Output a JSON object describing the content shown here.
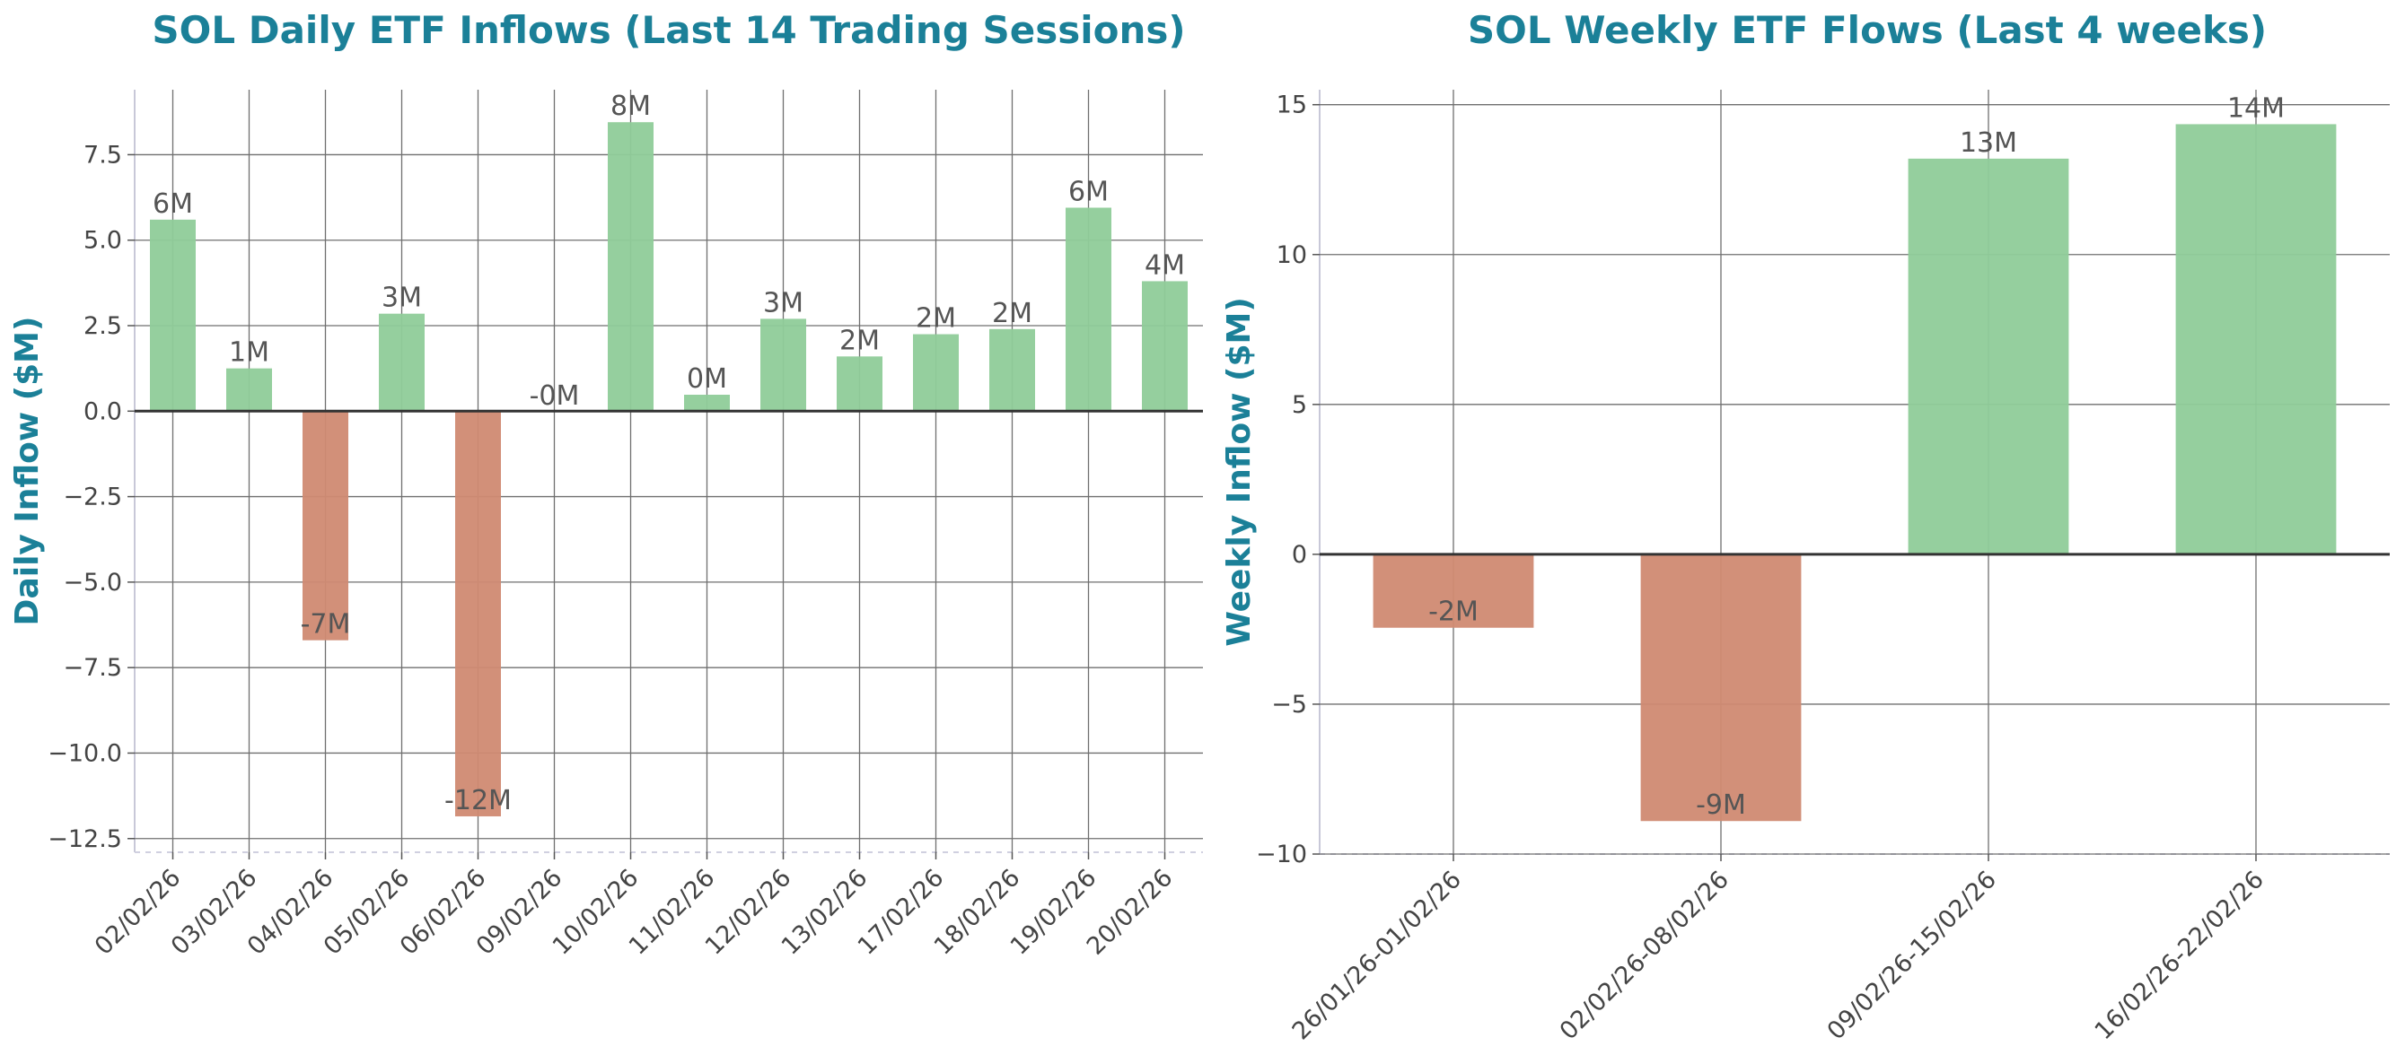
{
  "colors": {
    "positive": "#8fcc99",
    "negative": "#d08a72",
    "title": "#1b8098"
  },
  "chart_data": [
    {
      "type": "bar",
      "title": "SOL Daily ETF Inflows (Last 14 Trading Sessions)",
      "xlabel": "",
      "ylabel": "Daily Inflow ($M)",
      "ylim": [
        -12.9,
        9.4
      ],
      "yticks": [
        7.5,
        5.0,
        2.5,
        0.0,
        -2.5,
        -5.0,
        -7.5,
        -10.0,
        -12.5
      ],
      "ytick_labels": [
        "7.5",
        "5.0",
        "2.5",
        "0.0",
        "−2.5",
        "−5.0",
        "−7.5",
        "−10.0",
        "−12.5"
      ],
      "grid": true,
      "categories": [
        "02/02/26",
        "03/02/26",
        "04/02/26",
        "05/02/26",
        "06/02/26",
        "09/02/26",
        "10/02/26",
        "11/02/26",
        "12/02/26",
        "13/02/26",
        "17/02/26",
        "18/02/26",
        "19/02/26",
        "20/02/26"
      ],
      "values": [
        5.6,
        1.25,
        -6.7,
        2.85,
        -11.85,
        -0.02,
        8.45,
        0.48,
        2.7,
        1.6,
        2.25,
        2.4,
        5.95,
        3.8
      ],
      "data_labels": [
        "6M",
        "1M",
        "-7M",
        "3M",
        "-12M",
        "-0M",
        "8M",
        "0M",
        "3M",
        "2M",
        "2M",
        "2M",
        "6M",
        "4M"
      ]
    },
    {
      "type": "bar",
      "title": "SOL Weekly ETF Flows (Last 4 weeks)",
      "xlabel": "",
      "ylabel": "Weekly Inflow ($M)",
      "ylim": [
        -10,
        15.5
      ],
      "yticks": [
        15,
        10,
        5,
        0,
        -5,
        -10
      ],
      "ytick_labels": [
        "15",
        "10",
        "5",
        "0",
        "−5",
        "−10"
      ],
      "grid": true,
      "categories": [
        "26/01/26-01/02/26",
        "02/02/26-08/02/26",
        "09/02/26-15/02/26",
        "16/02/26-22/02/26"
      ],
      "values": [
        -2.45,
        -8.9,
        13.2,
        14.35
      ],
      "data_labels": [
        "-2M",
        "-9M",
        "13M",
        "14M"
      ]
    }
  ]
}
